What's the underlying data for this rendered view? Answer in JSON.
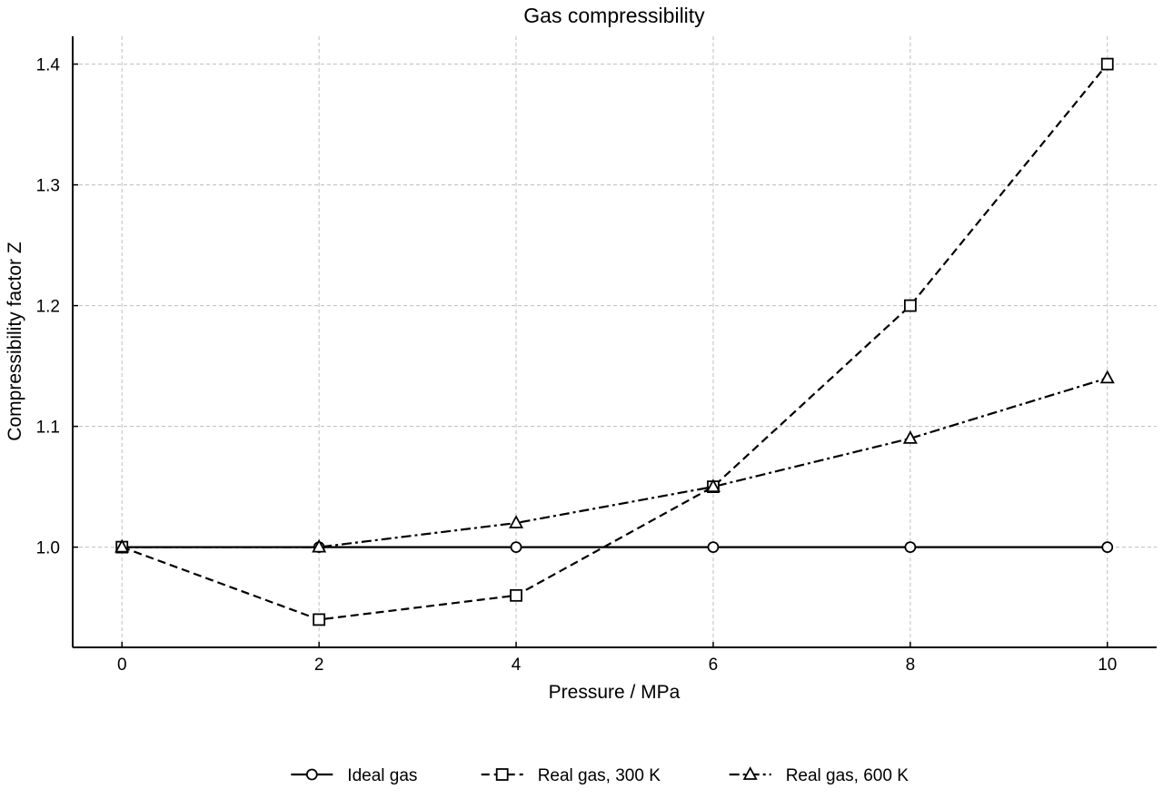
{
  "chart_data": {
    "type": "line",
    "title": "Gas compressibility",
    "xlabel": "Pressure / MPa",
    "ylabel": "Compressibility factor Z",
    "x": [
      0,
      2,
      4,
      6,
      8,
      10
    ],
    "xlim": [
      -0.5,
      10.5
    ],
    "ylim": [
      0.917,
      1.423
    ],
    "xticks": [
      0,
      2,
      4,
      6,
      8,
      10
    ],
    "yticks": [
      1.0,
      1.1,
      1.2,
      1.3,
      1.4
    ],
    "x_tick_labels": [
      "0",
      "2",
      "4",
      "6",
      "8",
      "10"
    ],
    "y_tick_labels": [
      "1.0",
      "1.1",
      "1.2",
      "1.3",
      "1.4"
    ],
    "grid": true,
    "legend_position": "bottom-center",
    "series": [
      {
        "name": "Ideal gas",
        "values": [
          1.0,
          1.0,
          1.0,
          1.0,
          1.0,
          1.0
        ],
        "marker": "circle",
        "line_style": "solid",
        "color": "#000000"
      },
      {
        "name": "Real gas, 300 K",
        "values": [
          1.0,
          0.94,
          0.96,
          1.05,
          1.2,
          1.4
        ],
        "marker": "square",
        "line_style": "dashed",
        "color": "#000000"
      },
      {
        "name": "Real gas, 600 K",
        "values": [
          1.0,
          1.0,
          1.02,
          1.05,
          1.09,
          1.14
        ],
        "marker": "triangle",
        "line_style": "dashdot",
        "color": "#000000"
      }
    ]
  }
}
